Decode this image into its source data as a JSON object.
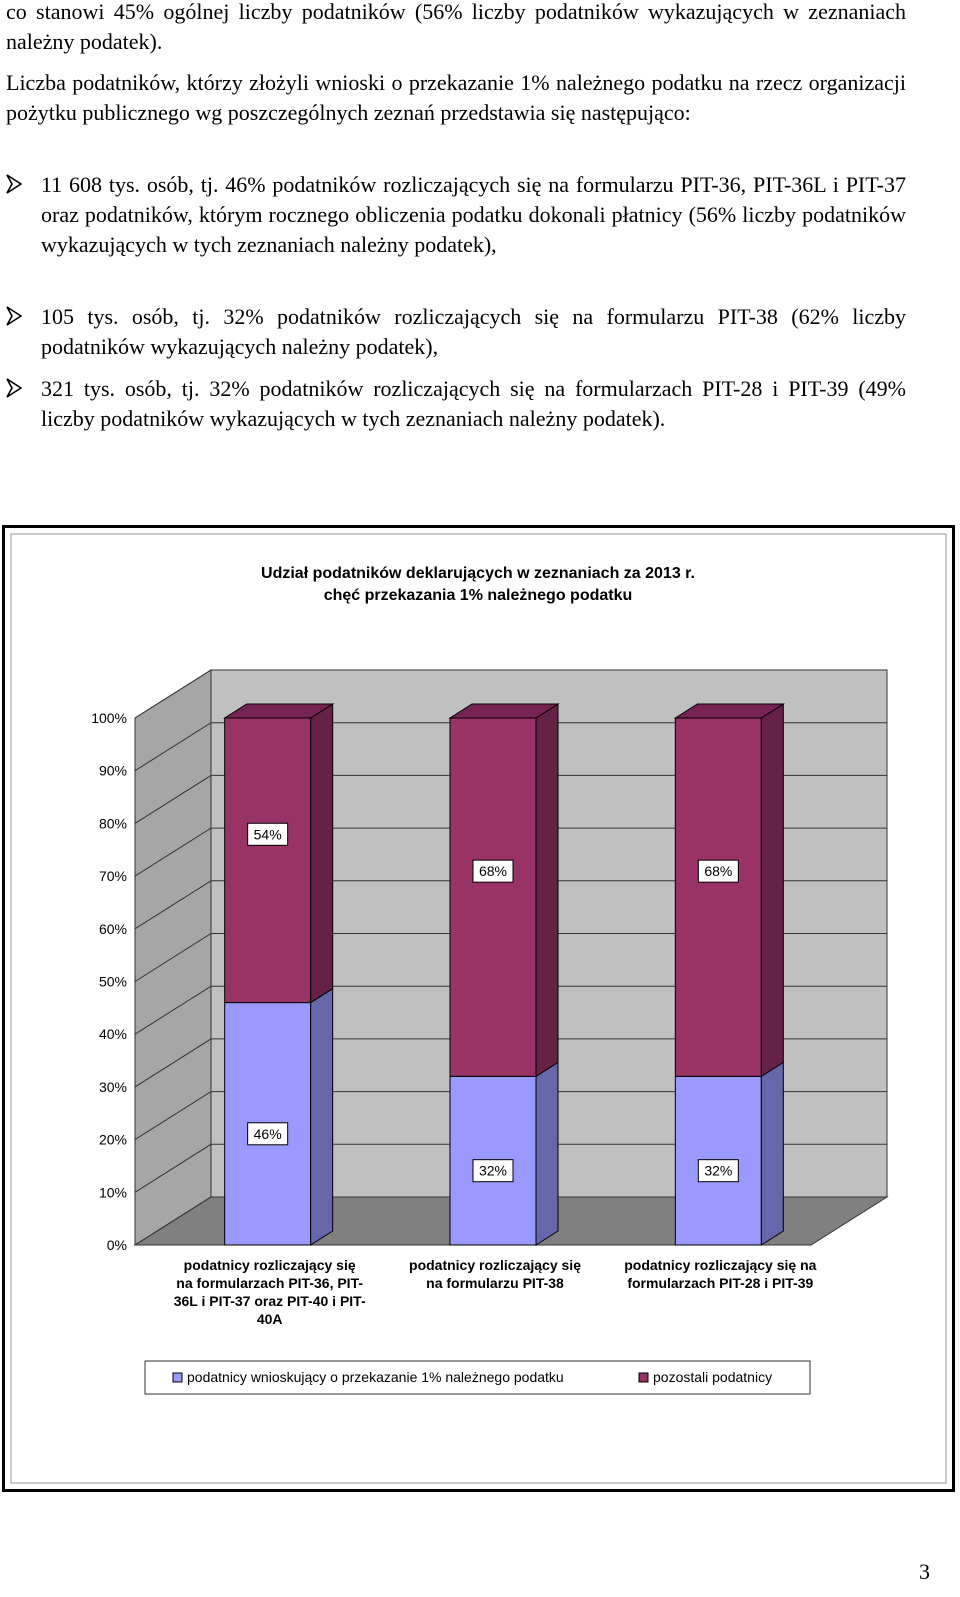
{
  "intro_fragment": "co stanowi 45%  ogólnej liczby podatników (56% liczby podatników wykazujących w zeznaniach należny podatek).",
  "intro_paragraph": "Liczba podatników, którzy złożyli wnioski o przekazanie 1% należnego podatku na rzecz organizacji pożytku publicznego wg poszczególnych zeznań przedstawia się następująco:",
  "bullets": [
    "11 608 tys. osób, tj. 46% podatników rozliczających się na formularzu PIT-36, PIT-36L i PIT-37 oraz podatników, którym rocznego obliczenia podatku dokonali płatnicy (56% liczby podatników wykazujących w tych zeznaniach należny podatek),",
    "105 tys. osób, tj. 32% podatników rozliczających się na formularzu PIT-38 (62% liczby podatników wykazujących należny podatek),",
    "321 tys. osób, tj. 32% podatników rozliczających się na formularzach PIT-28 i PIT-39 (49% liczby podatników wykazujących w tych zeznaniach należny podatek)."
  ],
  "page_number": "3",
  "chart_data": {
    "type": "bar",
    "stacked": true,
    "percent_stacked": true,
    "three_d": true,
    "title": "Udział podatników deklarujących w zeznaniach za 2013 r. chęć przekazania 1% należnego podatku",
    "title_lines": [
      "Udział podatników deklarujących w zeznaniach za 2013 r.",
      "chęć przekazania 1% należnego podatku"
    ],
    "categories": [
      [
        "podatnicy rozliczający się",
        "na formularzach PIT-36, PIT-",
        "36L i PIT-37 oraz PIT-40 i PIT-",
        "40A"
      ],
      [
        "podatnicy rozliczający się",
        "na formularzu PIT-38"
      ],
      [
        "podatnicy rozliczający się na",
        "formularzach PIT-28 i PIT-39"
      ]
    ],
    "series": [
      {
        "name": "podatnicy wnioskujący o przekazanie 1% należnego podatku",
        "values": [
          46,
          32,
          32
        ],
        "labels": [
          "46%",
          "32%",
          "32%"
        ],
        "color": "#9999ff"
      },
      {
        "name": "pozostali podatnicy",
        "values": [
          54,
          68,
          68
        ],
        "labels": [
          "54%",
          "68%",
          "68%"
        ],
        "color": "#993366"
      }
    ],
    "yticks": [
      "0%",
      "10%",
      "20%",
      "30%",
      "40%",
      "50%",
      "60%",
      "70%",
      "80%",
      "90%",
      "100%"
    ],
    "ylim": [
      0,
      100
    ],
    "grid": true,
    "legend": "bottom",
    "colors": {
      "wall": "#c0c0c0",
      "floor": "#808080",
      "series1_side": "#6666aa",
      "series2_side": "#662244"
    }
  }
}
